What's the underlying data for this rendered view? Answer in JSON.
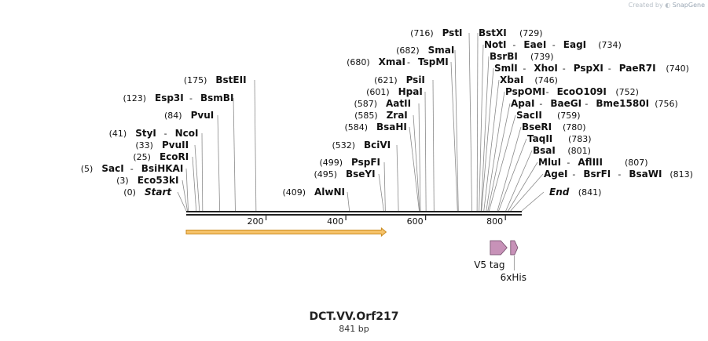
{
  "credit": {
    "prefix": "Created by",
    "brand": "SnapGene"
  },
  "title": "DCT.VV.Orf217",
  "subtitle": "841 bp",
  "colors": {
    "backbone": "#222222",
    "leader": "#8a8a8a",
    "orf_fill": "#f6c36a",
    "orf_stroke": "#c98a20",
    "feature_fill": "#c792b8",
    "feature_stroke": "#6e4a66"
  },
  "sequence_length": 841,
  "ticks": [
    200,
    400,
    600,
    800
  ],
  "orf": {
    "start": 1,
    "end": 501
  },
  "features": [
    {
      "name": "V5 tag",
      "start": 763,
      "end": 804,
      "direction": "forward"
    },
    {
      "name": "6xHis",
      "start": 814,
      "end": 831,
      "direction": "forward"
    }
  ],
  "sites": [
    {
      "pos": 0,
      "names": [
        "Start"
      ],
      "italic": true
    },
    {
      "pos": 3,
      "names": [
        "Eco53kI"
      ]
    },
    {
      "pos": 5,
      "names": [
        "SacI",
        "BsiHKAI"
      ]
    },
    {
      "pos": 25,
      "names": [
        "EcoRI"
      ]
    },
    {
      "pos": 33,
      "names": [
        "PvuII"
      ]
    },
    {
      "pos": 41,
      "names": [
        "StyI",
        "NcoI"
      ]
    },
    {
      "pos": 84,
      "names": [
        "PvuI"
      ]
    },
    {
      "pos": 123,
      "names": [
        "Esp3I",
        "BsmBI"
      ]
    },
    {
      "pos": 175,
      "names": [
        "BstEII"
      ]
    },
    {
      "pos": 409,
      "names": [
        "AlwNI"
      ]
    },
    {
      "pos": 495,
      "names": [
        "BseYI"
      ]
    },
    {
      "pos": 499,
      "names": [
        "PspFI"
      ]
    },
    {
      "pos": 532,
      "names": [
        "BciVI"
      ]
    },
    {
      "pos": 584,
      "names": [
        "BsaHI"
      ]
    },
    {
      "pos": 585,
      "names": [
        "ZraI"
      ]
    },
    {
      "pos": 587,
      "names": [
        "AatII"
      ]
    },
    {
      "pos": 601,
      "names": [
        "HpaI"
      ]
    },
    {
      "pos": 621,
      "names": [
        "PsiI"
      ]
    },
    {
      "pos": 680,
      "names": [
        "XmaI",
        "TspMI"
      ]
    },
    {
      "pos": 682,
      "names": [
        "SmaI"
      ]
    },
    {
      "pos": 716,
      "names": [
        "PstI"
      ]
    },
    {
      "pos": 729,
      "names": [
        "BstXI"
      ]
    },
    {
      "pos": 734,
      "names": [
        "NotI",
        "EaeI",
        "EagI"
      ]
    },
    {
      "pos": 739,
      "names": [
        "BsrBI"
      ]
    },
    {
      "pos": 740,
      "names": [
        "SmlI",
        "XhoI",
        "PspXI",
        "PaeR7I"
      ]
    },
    {
      "pos": 746,
      "names": [
        "XbaI"
      ]
    },
    {
      "pos": 752,
      "names": [
        "PspOMI",
        "EcoO109I"
      ]
    },
    {
      "pos": 756,
      "names": [
        "ApaI",
        "BaeGI",
        "Bme1580I"
      ]
    },
    {
      "pos": 759,
      "names": [
        "SacII"
      ]
    },
    {
      "pos": 780,
      "names": [
        "BseRI"
      ]
    },
    {
      "pos": 783,
      "names": [
        "TaqII"
      ]
    },
    {
      "pos": 801,
      "names": [
        "BsaI"
      ]
    },
    {
      "pos": 807,
      "names": [
        "MluI",
        "AflIII"
      ]
    },
    {
      "pos": 813,
      "names": [
        "AgeI",
        "BsrFI",
        "BsaWI"
      ]
    },
    {
      "pos": 841,
      "names": [
        "End"
      ],
      "italic": true
    }
  ]
}
